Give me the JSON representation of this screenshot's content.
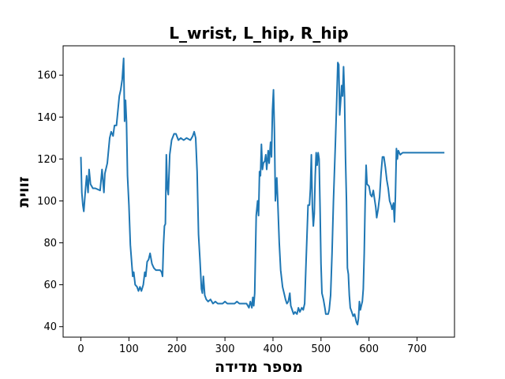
{
  "chart_data": {
    "type": "line",
    "title": "L_wrist, L_hip, R_hip",
    "xlabel": "מספר מדידה",
    "ylabel": "זווית",
    "xlim": [
      -37,
      778
    ],
    "ylim": [
      35,
      174
    ],
    "x_ticks": [
      0,
      100,
      200,
      300,
      400,
      500,
      600,
      700
    ],
    "y_ticks": [
      40,
      60,
      80,
      100,
      120,
      140,
      160
    ],
    "grid": false,
    "legend": "none",
    "series": [
      {
        "color": "#1f77b4",
        "points": [
          [
            0,
            121
          ],
          [
            2,
            104
          ],
          [
            4,
            98
          ],
          [
            6,
            95
          ],
          [
            9,
            104
          ],
          [
            12,
            112
          ],
          [
            15,
            104
          ],
          [
            17,
            115
          ],
          [
            20,
            108
          ],
          [
            25,
            106
          ],
          [
            30,
            106
          ],
          [
            40,
            105
          ],
          [
            44,
            115
          ],
          [
            48,
            104
          ],
          [
            50,
            113
          ],
          [
            55,
            118
          ],
          [
            60,
            130
          ],
          [
            63,
            133
          ],
          [
            67,
            131
          ],
          [
            70,
            136
          ],
          [
            74,
            136
          ],
          [
            77,
            143
          ],
          [
            80,
            150
          ],
          [
            83,
            153
          ],
          [
            86,
            158
          ],
          [
            89,
            168
          ],
          [
            91,
            138
          ],
          [
            93,
            148
          ],
          [
            95,
            138
          ],
          [
            97,
            112
          ],
          [
            100,
            98
          ],
          [
            103,
            79
          ],
          [
            106,
            70
          ],
          [
            108,
            64
          ],
          [
            110,
            66
          ],
          [
            113,
            60
          ],
          [
            117,
            59
          ],
          [
            120,
            57
          ],
          [
            123,
            59
          ],
          [
            126,
            57
          ],
          [
            130,
            60
          ],
          [
            133,
            66
          ],
          [
            135,
            64
          ],
          [
            138,
            71
          ],
          [
            141,
            72
          ],
          [
            144,
            75
          ],
          [
            148,
            70
          ],
          [
            152,
            68
          ],
          [
            156,
            67
          ],
          [
            160,
            67
          ],
          [
            165,
            67
          ],
          [
            168,
            66
          ],
          [
            170,
            64
          ],
          [
            172,
            79
          ],
          [
            174,
            88
          ],
          [
            176,
            89
          ],
          [
            178,
            122
          ],
          [
            180,
            106
          ],
          [
            182,
            103
          ],
          [
            185,
            122
          ],
          [
            189,
            129
          ],
          [
            194,
            132
          ],
          [
            198,
            132
          ],
          [
            203,
            129
          ],
          [
            208,
            130
          ],
          [
            214,
            129
          ],
          [
            220,
            130
          ],
          [
            228,
            129
          ],
          [
            233,
            131
          ],
          [
            236,
            133
          ],
          [
            239,
            130
          ],
          [
            242,
            114
          ],
          [
            245,
            84
          ],
          [
            248,
            72
          ],
          [
            251,
            58
          ],
          [
            253,
            56
          ],
          [
            255,
            64
          ],
          [
            258,
            55
          ],
          [
            261,
            53
          ],
          [
            265,
            52
          ],
          [
            270,
            53
          ],
          [
            275,
            51
          ],
          [
            280,
            52
          ],
          [
            285,
            51
          ],
          [
            290,
            51
          ],
          [
            295,
            51
          ],
          [
            300,
            52
          ],
          [
            305,
            51
          ],
          [
            310,
            51
          ],
          [
            315,
            51
          ],
          [
            320,
            51
          ],
          [
            325,
            52
          ],
          [
            330,
            51
          ],
          [
            335,
            51
          ],
          [
            340,
            51
          ],
          [
            345,
            51
          ],
          [
            350,
            49
          ],
          [
            353,
            52
          ],
          [
            356,
            49
          ],
          [
            358,
            54
          ],
          [
            360,
            50
          ],
          [
            362,
            56
          ],
          [
            365,
            93
          ],
          [
            368,
            100
          ],
          [
            370,
            93
          ],
          [
            372,
            114
          ],
          [
            374,
            112
          ],
          [
            376,
            127
          ],
          [
            378,
            115
          ],
          [
            380,
            118
          ],
          [
            383,
            119
          ],
          [
            385,
            122
          ],
          [
            387,
            115
          ],
          [
            390,
            124
          ],
          [
            392,
            118
          ],
          [
            395,
            128
          ],
          [
            397,
            121
          ],
          [
            399,
            143
          ],
          [
            401,
            153
          ],
          [
            403,
            133
          ],
          [
            405,
            100
          ],
          [
            408,
            111
          ],
          [
            410,
            100
          ],
          [
            413,
            80
          ],
          [
            416,
            67
          ],
          [
            420,
            59
          ],
          [
            424,
            55
          ],
          [
            426,
            53
          ],
          [
            429,
            51
          ],
          [
            432,
            52
          ],
          [
            435,
            56
          ],
          [
            437,
            50
          ],
          [
            440,
            48
          ],
          [
            443,
            46
          ],
          [
            446,
            47
          ],
          [
            450,
            46
          ],
          [
            453,
            49
          ],
          [
            456,
            47
          ],
          [
            460,
            49
          ],
          [
            463,
            48
          ],
          [
            466,
            51
          ],
          [
            469,
            71
          ],
          [
            471,
            85
          ],
          [
            473,
            98
          ],
          [
            476,
            98
          ],
          [
            478,
            106
          ],
          [
            480,
            122
          ],
          [
            482,
            97
          ],
          [
            484,
            88
          ],
          [
            486,
            94
          ],
          [
            488,
            112
          ],
          [
            490,
            123
          ],
          [
            492,
            117
          ],
          [
            494,
            123
          ],
          [
            496,
            120
          ],
          [
            498,
            97
          ],
          [
            500,
            70
          ],
          [
            502,
            56
          ],
          [
            505,
            53
          ],
          [
            508,
            49
          ],
          [
            510,
            46
          ],
          [
            515,
            46
          ],
          [
            517,
            48
          ],
          [
            520,
            55
          ],
          [
            523,
            75
          ],
          [
            526,
            100
          ],
          [
            530,
            128
          ],
          [
            533,
            150
          ],
          [
            535,
            166
          ],
          [
            537,
            165
          ],
          [
            539,
            141
          ],
          [
            541,
            148
          ],
          [
            543,
            155
          ],
          [
            545,
            150
          ],
          [
            547,
            164
          ],
          [
            549,
            150
          ],
          [
            551,
            120
          ],
          [
            553,
            100
          ],
          [
            555,
            68
          ],
          [
            557,
            65
          ],
          [
            559,
            55
          ],
          [
            561,
            49
          ],
          [
            564,
            47
          ],
          [
            567,
            45
          ],
          [
            570,
            46
          ],
          [
            572,
            44
          ],
          [
            574,
            42
          ],
          [
            576,
            41
          ],
          [
            578,
            44
          ],
          [
            580,
            52
          ],
          [
            582,
            48
          ],
          [
            584,
            50
          ],
          [
            586,
            52
          ],
          [
            588,
            58
          ],
          [
            590,
            75
          ],
          [
            592,
            100
          ],
          [
            594,
            117
          ],
          [
            596,
            108
          ],
          [
            600,
            107
          ],
          [
            603,
            103
          ],
          [
            606,
            102
          ],
          [
            609,
            105
          ],
          [
            612,
            100
          ],
          [
            614,
            97
          ],
          [
            616,
            92
          ],
          [
            619,
            96
          ],
          [
            622,
            102
          ],
          [
            625,
            113
          ],
          [
            628,
            121
          ],
          [
            631,
            121
          ],
          [
            634,
            116
          ],
          [
            637,
            110
          ],
          [
            640,
            106
          ],
          [
            643,
            100
          ],
          [
            646,
            98
          ],
          [
            648,
            96
          ],
          [
            651,
            99
          ],
          [
            653,
            90
          ],
          [
            655,
            102
          ],
          [
            657,
            125
          ],
          [
            659,
            120
          ],
          [
            661,
            124
          ],
          [
            665,
            122
          ],
          [
            670,
            123
          ],
          [
            680,
            123
          ],
          [
            690,
            123
          ],
          [
            700,
            123
          ],
          [
            710,
            123
          ],
          [
            720,
            123
          ],
          [
            730,
            123
          ],
          [
            740,
            123
          ],
          [
            750,
            123
          ],
          [
            757,
            123
          ]
        ]
      }
    ]
  }
}
